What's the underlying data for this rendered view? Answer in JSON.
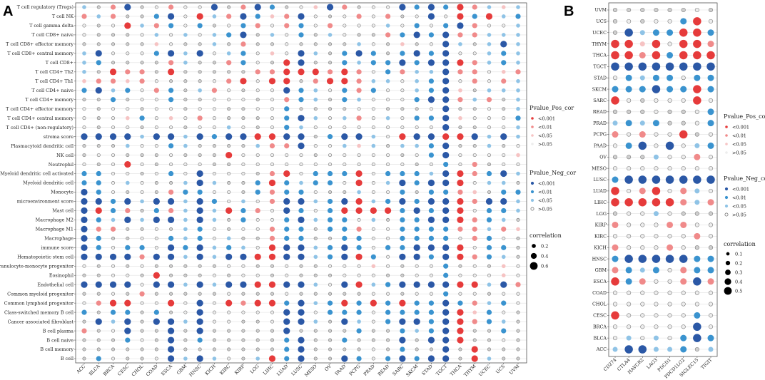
{
  "panels": [
    {
      "letter": "A",
      "legend_pos_title": "Pvalue_Pos_cor",
      "legend_neg_title": "Pvalue_Neg_cor",
      "legend_size_title": "correlation"
    },
    {
      "letter": "B",
      "legend_pos_title": "Pvalue_Pos_cor",
      "legend_neg_title": "Pvalue_Neg_cor",
      "legend_size_title": "correlation"
    }
  ],
  "colors": {
    "pos": [
      "#e63b3b",
      "#f08a8a",
      "#f6c3c3",
      "#ededed"
    ],
    "neg": [
      "#2b58a6",
      "#3a93cf",
      "#8fc3e6",
      "#d9d9d9"
    ]
  },
  "chart_data": [
    {
      "type": "scatter",
      "title": "",
      "pvalue_levels": [
        "<0.001",
        "<0.01",
        "<0.05",
        ">0.05"
      ],
      "size_legend_values": [
        0.2,
        0.4,
        0.6
      ],
      "size_legend_labels": [
        "0.2",
        "0.4",
        "0.6"
      ],
      "x_categories": [
        "ACC",
        "BLCA",
        "BRCA",
        "CESC",
        "CHOL",
        "COAD",
        "ESCA",
        "GBM",
        "HNSC",
        "KICH",
        "KIRC",
        "KIRP",
        "LGG",
        "LIHC",
        "LUAD",
        "LUSC",
        "MESO",
        "OV",
        "PAAD",
        "PCPG",
        "PRAD",
        "READ",
        "SARC",
        "SKCM",
        "STAD",
        "TGCT",
        "THCA",
        "THYM",
        "UCEC",
        "UCS",
        "UVM"
      ],
      "y_categories": [
        "T cell regulatory (Tregs)",
        "T cell NK",
        "T cell gamma delta",
        "T cell CD8+ naive",
        "T cell CD8+ effector memory",
        "T cell CD8+ central memory",
        "T cell CD8+",
        "T cell CD4+ Th2",
        "T cell CD4+ Th1",
        "T cell CD4+ naive",
        "T cell CD4+ memory",
        "T cell CD4+ effector memory",
        "T cell CD4+ central memory",
        "T cell CD4+ (non-regulatory)",
        "stroma score",
        "Plasmacytoid dendritic cell",
        "NK cell",
        "Neutrophil",
        "Myeloid dendritic cell activated",
        "Myeloid dendritic cell",
        "Monocyte",
        "microenvironment score",
        "Mast cell",
        "Macrophage M2",
        "Macrophage M1",
        "Macrophage",
        "immune score",
        "Hematopoietic stem cell",
        "Granulocyte-monocyte progenitor",
        "Eosinophil",
        "Endothelial cell",
        "Common myeloid progenitor",
        "Common lymphoid progenitor",
        "Class-switched memory B cell",
        "Cancer associated fibroblast",
        "B cell plasma",
        "B cell naive",
        "B cell memory",
        "B cell"
      ],
      "points_encoding": "each row string corresponds to y_categories order; each character is one x category: R/r/p/q = positive correlation at p<0.001/<0.01/<0.05/>0.05, B/b/l/o = negative correlation at p<0.001/<0.01/<0.05/>0.05",
      "rows": [
        "lorBoqrqqBorBboqpBroqqBbBbRrlpl",
        "rlroobBqRlrBbprBqoqrqroqBqRbRlb",
        "qoqRlrbqboqbrqrbqrqqqlqbqbBrqql",
        "qoooqlqlqlbBolqbolqoorbBbBrrlll",
        "ooooopqoolorooqoooolqopoqBlolBl",
        "lBqqqbBlBqlbqpqBlobBbobBbBqqlbl",
        "lboooorloorbqoRBooblbbBbBBRrlbl",
        "loRrroRooooorrRRRrRrqbrllBrrqpr",
        "prrprqoooqrRqRRorRRrllqlbBqrqrl",
        "bBlbqrbolrqoqqBblqbrbqqlbBpolll",
        "ooboqqbooqqqoqrbloblqqqbBBrlrol",
        "qoqqoqqoqqooqqbooooqqoooqBooqol",
        "qoqpbqpqrqoooqbBlqlrqlqbbBpqqqb",
        "qoqqoqqoqqlqoqblqqqqqqqqqBooqql",
        "BBBBlBBlBbBBRRBBobBBlqRBBRRBlBl",
        "ooolqqbloooolrrBqqlplollbBooloq",
        "oqqoooqoooRqqqqqoqqqqqoqbBqqqqp",
        "qoqRqoqqqooqqqqqqqqqqqqoqbqroqq",
        "bbqqoqbqBqqqorRqbbbRqbbblBRrbBl",
        "bbqlqoolBloobRblbbqRqlBbBBRqllo",
        "Bbqoqorbbqqobrbbqoolqqbobbrpobb",
        "BBbBlBBlBbqlqrBBlbBRlbBbBBRrBBl",
        "BRbrobrlBlRbrqBbqbRRRRbBbBRqbbl",
        "BblBlBBlBlobqqbBlbbqlobbBBRrblo",
        "Brrooqolbqoqqrbbobbrqqbbbbrrlrp",
        "Bbooqqblbqloorbboobbqqbbbbqrbqo",
        "BbqbbqBbBlblqRBBlbBbqbbBBBRqbbo",
        "BBBBrBBlBlBBRRBBlbBRbqBBbBRrblo",
        "qoqoqoooooqqooqooqqqpqoqqboqopq",
        "ooqqoRoooqoqqoqoooqqqooqqbqqqpq",
        "BBBBqBBlBlBBRRBBlqBRlbBBBBRRlBr",
        "ooqoroooooqoooqoooooqqoqqbqqoqq",
        "qrRRqqRqBqRrRRbBlbRbRbRbbBbrlbq",
        "bobboboqBqqqqqBBqbbbqbbbbBRpbqo",
        "oBlBoBBlBqqooqBBloBlqbBBbBRrblo",
        "roqBooBoBoooooBoooobooblbBRoobo",
        "ooobqoBobooooobBooboooBoBBRooqo",
        "ooooooBooooooobBooooqobooBoRooo",
        "obqooqBlBlqolRbBooBbqbBbBBoRloo"
      ],
      "correlation_size_note": "marker size encodes absolute correlation (legend 0.2–0.6)"
    },
    {
      "type": "scatter",
      "title": "",
      "pvalue_levels": [
        "<0.001",
        "<0.01",
        "<0.05",
        ">0.05"
      ],
      "size_legend_values": [
        0.1,
        0.2,
        0.3,
        0.4,
        0.5
      ],
      "size_legend_labels": [
        "0.1",
        "0.2",
        "0.3",
        "0.4",
        "0.5"
      ],
      "x_categories": [
        "CD274",
        "CTLA4",
        "HAVCR2",
        "LAG3",
        "PDCD1",
        "PDCD1LG2",
        "SIGLEC15",
        "TIGIT"
      ],
      "y_categories": [
        "UVM",
        "UCS",
        "UCEC",
        "THYM",
        "THCA",
        "TGCT",
        "STAD",
        "SKCM",
        "SARC",
        "READ",
        "PRAD",
        "PCPG",
        "PAAD",
        "OV",
        "MESO",
        "LUSC",
        "LUAD",
        "LIHC",
        "LGG",
        "KIRP",
        "KIRC",
        "KICH",
        "HNSC",
        "GBM",
        "ESCA",
        "COAD",
        "CHOL",
        "CESC",
        "BRCA",
        "BLCA",
        "ACC"
      ],
      "points_encoding": "each row string corresponds to y_categories order; each character is one x category: R/r/p/q = positive correlation at p<0.001/<0.01/<0.05/>0.05, B/b/l/o = negative correlation at p<0.001/<0.01/<0.05/>0.05",
      "rows": [
        "ooooooqo",
        "oqoqqbRq",
        "oBlbbRRb",
        "RRpRqRRr",
        "RRrRbRRR",
        "BBBBBBBB",
        "qblbbqbb",
        "bbbBbbRb",
        "RqoqqqRq",
        "oooqooqb",
        "lblbooqb",
        "rqrqqRoq",
        "qbBqBqlb",
        "ooolqqrq",
        "qqqqqqqq",
        "bBBBBBBB",
        "RqrRqrlq",
        "RRRRRrlr",
        "oqqlqooo",
        "rqqqrrqq",
        "qqqqqqrq",
        "rqqqrqoo",
        "bBBBBBbb",
        "rblbqrbb",
        "RbrqqrBr",
        "qqqqqqqq",
        "qqqqqqqq",
        "Rqqqqqbq",
        "qqqqqqBq",
        "qlqlqbBb",
        "lBBllbol"
      ],
      "correlation_size_note": "marker size encodes absolute correlation (legend 0.1–0.5)"
    }
  ]
}
